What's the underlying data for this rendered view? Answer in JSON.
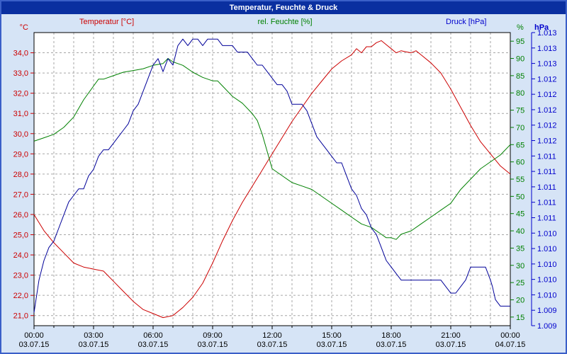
{
  "window": {
    "title": "Temperatur, Feuchte & Druck"
  },
  "header": {
    "temperature_label": "Temperatur [°C]",
    "humidity_label": "rel. Feuchte [%]",
    "pressure_label": "Druck [hPa]"
  },
  "colors": {
    "titlebar": "#0a2fa0",
    "window_background": "#d6e4f6",
    "temperature": "#cc0000",
    "humidity": "#008000",
    "pressure_line": "#000099",
    "pressure_axis": "#0000cc",
    "grid": "#a6a6a6",
    "x_labels": "#000000"
  },
  "chart_data": {
    "type": "line",
    "title": "Temperatur, Feuchte & Druck",
    "grid_color": "#a6a6a6",
    "x_label_color": "#000000",
    "x_hours_span": [
      0,
      24
    ],
    "x_major_ticks": [
      0,
      3,
      6,
      9,
      12,
      15,
      18,
      21,
      24
    ],
    "x_tick_time_labels": [
      "00:00",
      "03:00",
      "06:00",
      "09:00",
      "12:00",
      "15:00",
      "18:00",
      "21:00",
      "00:00"
    ],
    "x_tick_date_labels": [
      "03.07.15",
      "03.07.15",
      "03.07.15",
      "03.07.15",
      "03.07.15",
      "03.07.15",
      "03.07.15",
      "03.07.15",
      "04.07.15"
    ],
    "axes": {
      "temperature": {
        "unit": "°C",
        "color": "#cc0000",
        "range": [
          20.5,
          35.0
        ],
        "tick_values": [
          21,
          22,
          23,
          24,
          25,
          26,
          27,
          28,
          29,
          30,
          31,
          32,
          33,
          34
        ],
        "tick_labels": [
          "21,0",
          "22,0",
          "23,0",
          "24,0",
          "25,0",
          "26,0",
          "27,0",
          "28,0",
          "29,0",
          "30,0",
          "31,0",
          "32,0",
          "33,0",
          "34,0"
        ]
      },
      "humidity": {
        "unit": "%",
        "color": "#008000",
        "range": [
          12.5,
          97.5
        ],
        "tick_values": [
          15,
          20,
          25,
          30,
          35,
          40,
          45,
          50,
          55,
          60,
          65,
          70,
          75,
          80,
          85,
          90,
          95
        ],
        "tick_labels": [
          "15",
          "20",
          "25",
          "30",
          "35",
          "40",
          "45",
          "50",
          "55",
          "60",
          "65",
          "70",
          "75",
          "80",
          "85",
          "90",
          "95"
        ]
      },
      "pressure": {
        "unit": "hPa",
        "color": "#0000cc",
        "line_color": "#000099",
        "range": [
          1.009,
          1.0135
        ],
        "tick_labels": [
          "1.013",
          "1.013",
          "1.013",
          "1.012",
          "1.012",
          "1.012",
          "1.012",
          "1.012",
          "1.011",
          "1.011",
          "1.011",
          "1.011",
          "1.011",
          "1.010",
          "1.010",
          "1.010",
          "1.010",
          "1.010",
          "1.009",
          "1.009"
        ]
      }
    },
    "series": [
      {
        "name": "Temperatur [°C]",
        "axis": "temperature",
        "color": "#cc0000",
        "points": [
          [
            0,
            26.0
          ],
          [
            0.25,
            25.6
          ],
          [
            0.5,
            25.2
          ],
          [
            0.75,
            24.9
          ],
          [
            1,
            24.6
          ],
          [
            1.5,
            24.1
          ],
          [
            2,
            23.6
          ],
          [
            2.5,
            23.4
          ],
          [
            3,
            23.3
          ],
          [
            3.5,
            23.2
          ],
          [
            4,
            22.7
          ],
          [
            4.5,
            22.2
          ],
          [
            5,
            21.7
          ],
          [
            5.5,
            21.3
          ],
          [
            6,
            21.1
          ],
          [
            6.5,
            20.9
          ],
          [
            7,
            21.0
          ],
          [
            7.5,
            21.4
          ],
          [
            8,
            21.9
          ],
          [
            8.5,
            22.6
          ],
          [
            9,
            23.6
          ],
          [
            9.5,
            24.7
          ],
          [
            10,
            25.7
          ],
          [
            10.5,
            26.6
          ],
          [
            11,
            27.4
          ],
          [
            11.5,
            28.2
          ],
          [
            12,
            29.0
          ],
          [
            12.5,
            29.8
          ],
          [
            13,
            30.6
          ],
          [
            13.5,
            31.3
          ],
          [
            14,
            32.0
          ],
          [
            14.5,
            32.6
          ],
          [
            15,
            33.2
          ],
          [
            15.5,
            33.6
          ],
          [
            16,
            33.9
          ],
          [
            16.25,
            34.2
          ],
          [
            16.5,
            34.0
          ],
          [
            16.75,
            34.3
          ],
          [
            17,
            34.3
          ],
          [
            17.25,
            34.5
          ],
          [
            17.5,
            34.6
          ],
          [
            17.75,
            34.4
          ],
          [
            18,
            34.2
          ],
          [
            18.25,
            34.0
          ],
          [
            18.5,
            34.1
          ],
          [
            19,
            34.0
          ],
          [
            19.25,
            34.1
          ],
          [
            19.5,
            33.9
          ],
          [
            20,
            33.5
          ],
          [
            20.5,
            33.0
          ],
          [
            21,
            32.2
          ],
          [
            21.5,
            31.3
          ],
          [
            22,
            30.4
          ],
          [
            22.5,
            29.6
          ],
          [
            23,
            29.0
          ],
          [
            23.5,
            28.4
          ],
          [
            24,
            28.0
          ]
        ]
      },
      {
        "name": "rel. Feuchte [%]",
        "axis": "humidity",
        "color": "#008000",
        "points": [
          [
            0,
            66
          ],
          [
            0.5,
            67
          ],
          [
            1,
            68
          ],
          [
            1.5,
            70
          ],
          [
            2,
            73
          ],
          [
            2.5,
            78
          ],
          [
            3,
            82
          ],
          [
            3.25,
            84
          ],
          [
            3.5,
            84
          ],
          [
            4,
            85
          ],
          [
            4.5,
            86
          ],
          [
            5,
            86.5
          ],
          [
            5.5,
            87
          ],
          [
            6,
            88
          ],
          [
            6.5,
            88.5
          ],
          [
            6.75,
            90
          ],
          [
            7,
            89
          ],
          [
            7.25,
            88.5
          ],
          [
            7.5,
            88
          ],
          [
            8,
            86
          ],
          [
            8.5,
            84.5
          ],
          [
            9,
            83.5
          ],
          [
            9.25,
            83.5
          ],
          [
            9.5,
            82
          ],
          [
            10,
            79
          ],
          [
            10.5,
            77
          ],
          [
            11,
            74
          ],
          [
            11.25,
            72
          ],
          [
            11.5,
            68
          ],
          [
            11.75,
            63
          ],
          [
            12,
            58
          ],
          [
            12.5,
            56
          ],
          [
            13,
            54
          ],
          [
            13.5,
            53
          ],
          [
            14,
            52
          ],
          [
            14.5,
            50
          ],
          [
            15,
            48
          ],
          [
            15.5,
            46
          ],
          [
            16,
            44
          ],
          [
            16.5,
            42
          ],
          [
            17,
            41
          ],
          [
            17.5,
            39
          ],
          [
            17.75,
            38
          ],
          [
            18,
            38
          ],
          [
            18.25,
            37.5
          ],
          [
            18.5,
            39
          ],
          [
            19,
            40
          ],
          [
            19.5,
            42
          ],
          [
            20,
            44
          ],
          [
            20.5,
            46
          ],
          [
            21,
            48
          ],
          [
            21.5,
            52
          ],
          [
            22,
            55
          ],
          [
            22.5,
            58
          ],
          [
            23,
            60
          ],
          [
            23.5,
            62
          ],
          [
            24,
            65
          ]
        ]
      },
      {
        "name": "Druck [hPa]",
        "axis": "pressure",
        "color": "#000099",
        "points": [
          [
            0,
            1.0092
          ],
          [
            0.25,
            1.0097
          ],
          [
            0.5,
            1.01
          ],
          [
            0.75,
            1.0102
          ],
          [
            1,
            1.0103
          ],
          [
            1.25,
            1.0105
          ],
          [
            1.5,
            1.0107
          ],
          [
            1.75,
            1.0109
          ],
          [
            2,
            1.011
          ],
          [
            2.25,
            1.0111
          ],
          [
            2.5,
            1.0111
          ],
          [
            2.75,
            1.0113
          ],
          [
            3,
            1.0114
          ],
          [
            3.25,
            1.0116
          ],
          [
            3.5,
            1.0117
          ],
          [
            3.75,
            1.0117
          ],
          [
            4,
            1.0118
          ],
          [
            4.25,
            1.0119
          ],
          [
            4.5,
            1.012
          ],
          [
            4.75,
            1.0121
          ],
          [
            5,
            1.0123
          ],
          [
            5.25,
            1.0124
          ],
          [
            5.5,
            1.0126
          ],
          [
            5.75,
            1.0128
          ],
          [
            6,
            1.013
          ],
          [
            6.25,
            1.0131
          ],
          [
            6.5,
            1.0129
          ],
          [
            6.75,
            1.0131
          ],
          [
            7,
            1.013
          ],
          [
            7.25,
            1.0133
          ],
          [
            7.5,
            1.0134
          ],
          [
            7.75,
            1.0133
          ],
          [
            8,
            1.0134
          ],
          [
            8.25,
            1.0134
          ],
          [
            8.5,
            1.0133
          ],
          [
            8.75,
            1.0134
          ],
          [
            9,
            1.0134
          ],
          [
            9.25,
            1.0134
          ],
          [
            9.5,
            1.0133
          ],
          [
            9.75,
            1.0133
          ],
          [
            10,
            1.0133
          ],
          [
            10.25,
            1.0132
          ],
          [
            10.5,
            1.0132
          ],
          [
            10.75,
            1.0132
          ],
          [
            11,
            1.0131
          ],
          [
            11.25,
            1.013
          ],
          [
            11.5,
            1.013
          ],
          [
            11.75,
            1.0129
          ],
          [
            12,
            1.0128
          ],
          [
            12.25,
            1.0127
          ],
          [
            12.5,
            1.0127
          ],
          [
            12.75,
            1.0126
          ],
          [
            13,
            1.0124
          ],
          [
            13.25,
            1.0124
          ],
          [
            13.5,
            1.0124
          ],
          [
            13.75,
            1.0123
          ],
          [
            14,
            1.0121
          ],
          [
            14.25,
            1.0119
          ],
          [
            14.5,
            1.0118
          ],
          [
            14.75,
            1.0117
          ],
          [
            15,
            1.0116
          ],
          [
            15.25,
            1.0115
          ],
          [
            15.5,
            1.0115
          ],
          [
            15.75,
            1.0113
          ],
          [
            16,
            1.0111
          ],
          [
            16.25,
            1.011
          ],
          [
            16.5,
            1.0108
          ],
          [
            16.75,
            1.0107
          ],
          [
            17,
            1.0105
          ],
          [
            17.25,
            1.0104
          ],
          [
            17.5,
            1.0102
          ],
          [
            17.75,
            1.01
          ],
          [
            18,
            1.0099
          ],
          [
            18.25,
            1.0098
          ],
          [
            18.5,
            1.0097
          ],
          [
            19,
            1.0097
          ],
          [
            19.5,
            1.0097
          ],
          [
            20,
            1.0097
          ],
          [
            20.5,
            1.0097
          ],
          [
            20.75,
            1.0096
          ],
          [
            21,
            1.0095
          ],
          [
            21.25,
            1.0095
          ],
          [
            21.5,
            1.0096
          ],
          [
            21.75,
            1.0097
          ],
          [
            22,
            1.0099
          ],
          [
            22.25,
            1.0099
          ],
          [
            22.5,
            1.0099
          ],
          [
            22.75,
            1.0099
          ],
          [
            23,
            1.0097
          ],
          [
            23.1,
            1.0096
          ],
          [
            23.25,
            1.0094
          ],
          [
            23.5,
            1.0093
          ],
          [
            23.75,
            1.0093
          ],
          [
            24,
            1.0093
          ]
        ]
      }
    ]
  }
}
